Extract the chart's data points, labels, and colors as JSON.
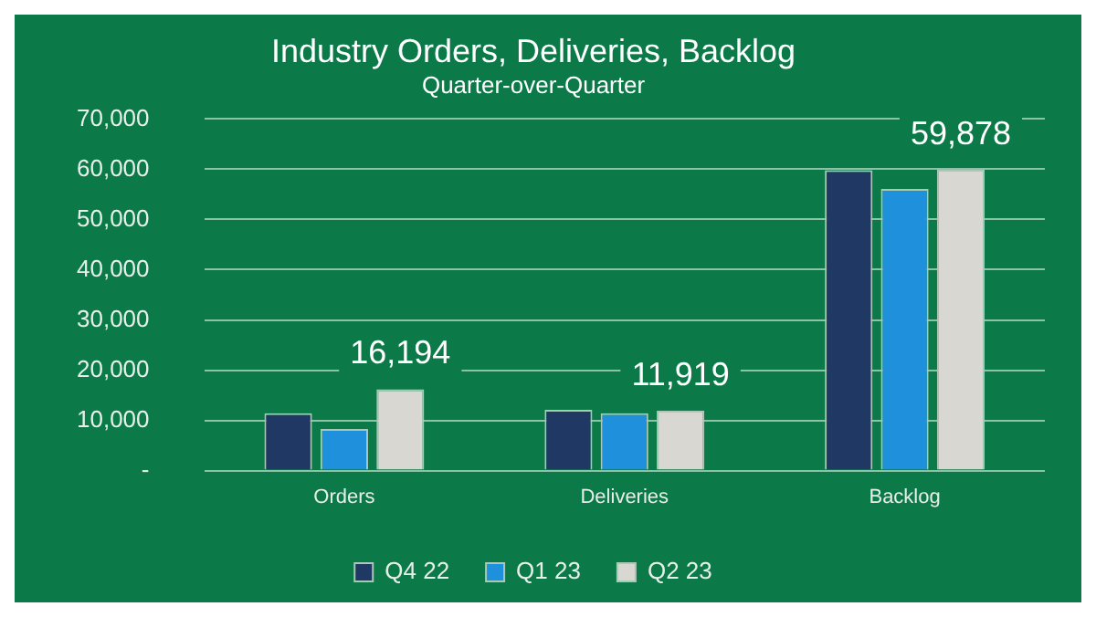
{
  "chart_data": {
    "type": "bar",
    "title": "Industry Orders, Deliveries, Backlog",
    "subtitle": "Quarter-over-Quarter",
    "categories": [
      "Orders",
      "Deliveries",
      "Backlog"
    ],
    "series": [
      {
        "name": "Q4 22",
        "color": "#1f3864",
        "values": [
          11400,
          12100,
          59800
        ]
      },
      {
        "name": "Q1 23",
        "color": "#1e90dc",
        "values": [
          8300,
          11400,
          56100
        ]
      },
      {
        "name": "Q2 23",
        "color": "#d9d7d2",
        "values": [
          16194,
          11919,
          59878
        ],
        "value_labels": [
          "16,194",
          "11,919",
          "59,878"
        ]
      }
    ],
    "ylim": [
      0,
      70000
    ],
    "yticks": [
      {
        "value": 0,
        "label": "-"
      },
      {
        "value": 10000,
        "label": "10,000"
      },
      {
        "value": 20000,
        "label": "20,000"
      },
      {
        "value": 30000,
        "label": "30,000"
      },
      {
        "value": 40000,
        "label": "40,000"
      },
      {
        "value": 50000,
        "label": "50,000"
      },
      {
        "value": 60000,
        "label": "60,000"
      },
      {
        "value": 70000,
        "label": "70,000"
      }
    ],
    "grid": "y",
    "legend": "bottom"
  }
}
